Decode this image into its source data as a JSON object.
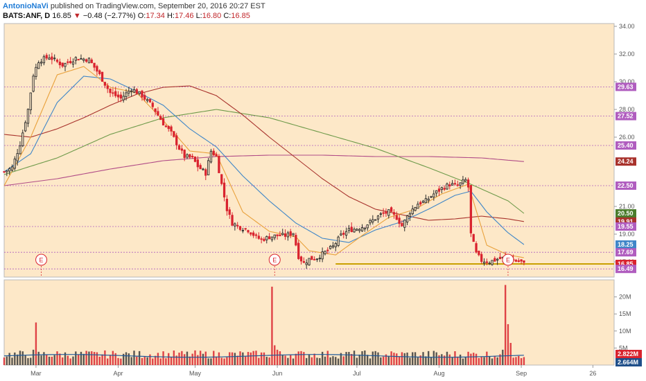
{
  "header": {
    "author": "AntonioNaVi",
    "published": "published on TradingView.com, September 20, 2016 20:27 EST",
    "symbol": "BATS:ANF, D",
    "last": "16.85",
    "change_arrow": "▼",
    "change": "−0.48 (−2.77%)",
    "o_label": "O:",
    "o": "17.34",
    "h_label": "H:",
    "h": "17.46",
    "l_label": "L:",
    "l": "16.80",
    "c_label": "C:",
    "c": "16.85"
  },
  "colors": {
    "background": "#fde8c8",
    "up": "#2b2b2b",
    "down": "#d9232e",
    "sma_fast": "#e9a13b",
    "sma_mid": "#3f86c8",
    "sma_slow": "#a8322c",
    "sma_green": "#6e9a4a",
    "sma_purple": "#b14c87",
    "support": "#c9a000",
    "level": "#b05dbf"
  },
  "chart_data": {
    "type": "candlestick",
    "title": "",
    "ylim": [
      15.9,
      34.2
    ],
    "y_ticks": [
      "34.00",
      "32.00",
      "30.00",
      "28.00",
      "26.00",
      "21.00",
      "19.00",
      "17.00"
    ],
    "x_labels": [
      "Mar",
      "Apr",
      "May",
      "Jun",
      "Jul",
      "Aug",
      "Sep",
      "26"
    ],
    "x_label_days": [
      12,
      43,
      72,
      103,
      133,
      164,
      195,
      222
    ],
    "earnings_markers_day": [
      14,
      102,
      190
    ],
    "earnings_label": "E",
    "support_level": 16.85,
    "support_from_day": 125,
    "price_labels": [
      {
        "value": "29.63",
        "y": 29.63,
        "color": "#b05dbf",
        "dashed": true
      },
      {
        "value": "27.52",
        "y": 27.52,
        "color": "#b05dbf",
        "dashed": true
      },
      {
        "value": "25.40",
        "y": 25.4,
        "color": "#b05dbf",
        "dashed": true
      },
      {
        "value": "24.24",
        "y": 24.24,
        "color": "#a8322c",
        "dashed": false
      },
      {
        "value": "22.50",
        "y": 22.5,
        "color": "#b05dbf",
        "dashed": true
      },
      {
        "value": "20.50",
        "y": 20.5,
        "color": "#4b7d2d",
        "dashed": false
      },
      {
        "value": "19.91",
        "y": 19.91,
        "color": "#a8322c",
        "dashed": false
      },
      {
        "value": "19.55",
        "y": 19.55,
        "color": "#b05dbf",
        "dashed": true
      },
      {
        "value": "18.25",
        "y": 18.25,
        "color": "#3f86c8",
        "dashed": false
      },
      {
        "value": "17.69",
        "y": 17.69,
        "color": "#b05dbf",
        "dashed": true
      },
      {
        "value": "16.85",
        "y": 16.85,
        "color": "#d9232e",
        "dashed": false
      },
      {
        "value": "16.49",
        "y": 16.49,
        "color": "#b05dbf",
        "dashed": true
      }
    ],
    "price_knots": [
      [
        0,
        23.5
      ],
      [
        3,
        23.8
      ],
      [
        6,
        25.5
      ],
      [
        9,
        28.0
      ],
      [
        11,
        30.5
      ],
      [
        13,
        31.5
      ],
      [
        17,
        31.8
      ],
      [
        22,
        31.2
      ],
      [
        27,
        31.7
      ],
      [
        32,
        31.6
      ],
      [
        36,
        30.5
      ],
      [
        40,
        29.2
      ],
      [
        44,
        28.8
      ],
      [
        48,
        29.5
      ],
      [
        52,
        29.0
      ],
      [
        56,
        28.2
      ],
      [
        60,
        27.0
      ],
      [
        63,
        26.3
      ],
      [
        66,
        25.2
      ],
      [
        68,
        24.6
      ],
      [
        71,
        24.5
      ],
      [
        73,
        23.9
      ],
      [
        76,
        23.4
      ],
      [
        78,
        25.0
      ],
      [
        80,
        24.6
      ],
      [
        82,
        22.6
      ],
      [
        84,
        20.8
      ],
      [
        86,
        19.8
      ],
      [
        89,
        19.5
      ],
      [
        92,
        19.3
      ],
      [
        95,
        18.8
      ],
      [
        97,
        18.6
      ],
      [
        100,
        18.8
      ],
      [
        103,
        18.9
      ],
      [
        106,
        18.9
      ],
      [
        109,
        19.1
      ],
      [
        111,
        17.4
      ],
      [
        113,
        16.9
      ],
      [
        115,
        17.2
      ],
      [
        118,
        17.3
      ],
      [
        121,
        17.7
      ],
      [
        124,
        18.1
      ],
      [
        127,
        18.9
      ],
      [
        130,
        19.3
      ],
      [
        133,
        19.4
      ],
      [
        136,
        19.6
      ],
      [
        139,
        20.0
      ],
      [
        142,
        20.4
      ],
      [
        145,
        20.6
      ],
      [
        148,
        20.2
      ],
      [
        150,
        19.6
      ],
      [
        153,
        20.6
      ],
      [
        156,
        21.2
      ],
      [
        159,
        21.4
      ],
      [
        162,
        21.9
      ],
      [
        165,
        22.3
      ],
      [
        168,
        22.6
      ],
      [
        171,
        22.5
      ],
      [
        174,
        22.9
      ],
      [
        175,
        22.4
      ],
      [
        176,
        19.0
      ],
      [
        178,
        17.6
      ],
      [
        180,
        17.1
      ],
      [
        183,
        17.0
      ],
      [
        186,
        17.2
      ],
      [
        189,
        17.3
      ],
      [
        192,
        17.1
      ],
      [
        195,
        17.0
      ],
      [
        196,
        16.85
      ]
    ],
    "sma_fast": [
      [
        0,
        22.5
      ],
      [
        10,
        26.0
      ],
      [
        20,
        30.5
      ],
      [
        30,
        31.1
      ],
      [
        40,
        29.6
      ],
      [
        50,
        29.2
      ],
      [
        60,
        27.2
      ],
      [
        70,
        25.0
      ],
      [
        80,
        24.8
      ],
      [
        90,
        20.6
      ],
      [
        100,
        19.2
      ],
      [
        110,
        18.8
      ],
      [
        115,
        17.8
      ],
      [
        125,
        17.5
      ],
      [
        135,
        18.9
      ],
      [
        145,
        20.2
      ],
      [
        155,
        20.8
      ],
      [
        165,
        21.9
      ],
      [
        175,
        22.6
      ],
      [
        182,
        18.2
      ],
      [
        190,
        17.5
      ],
      [
        196,
        17.3
      ]
    ],
    "sma_mid": [
      [
        0,
        23.5
      ],
      [
        10,
        24.8
      ],
      [
        20,
        28.5
      ],
      [
        30,
        30.4
      ],
      [
        40,
        30.2
      ],
      [
        50,
        29.3
      ],
      [
        60,
        28.3
      ],
      [
        70,
        26.6
      ],
      [
        80,
        25.3
      ],
      [
        90,
        23.2
      ],
      [
        100,
        21.4
      ],
      [
        110,
        19.8
      ],
      [
        120,
        18.7
      ],
      [
        130,
        18.4
      ],
      [
        140,
        19.3
      ],
      [
        150,
        19.9
      ],
      [
        160,
        20.8
      ],
      [
        170,
        21.8
      ],
      [
        176,
        22.1
      ],
      [
        182,
        20.6
      ],
      [
        190,
        19.1
      ],
      [
        196,
        18.25
      ]
    ],
    "sma_slow": [
      [
        0,
        26.2
      ],
      [
        10,
        26.0
      ],
      [
        20,
        26.6
      ],
      [
        30,
        27.4
      ],
      [
        40,
        28.3
      ],
      [
        50,
        29.1
      ],
      [
        60,
        29.6
      ],
      [
        70,
        29.7
      ],
      [
        80,
        29.0
      ],
      [
        90,
        27.6
      ],
      [
        100,
        26.0
      ],
      [
        110,
        24.5
      ],
      [
        120,
        23.0
      ],
      [
        130,
        21.7
      ],
      [
        140,
        20.8
      ],
      [
        150,
        20.4
      ],
      [
        160,
        20.0
      ],
      [
        170,
        20.1
      ],
      [
        180,
        20.3
      ],
      [
        190,
        20.1
      ],
      [
        196,
        19.91
      ]
    ],
    "sma_green": [
      [
        0,
        23.3
      ],
      [
        20,
        24.5
      ],
      [
        40,
        26.2
      ],
      [
        60,
        27.4
      ],
      [
        80,
        28.0
      ],
      [
        100,
        27.4
      ],
      [
        120,
        26.3
      ],
      [
        140,
        25.2
      ],
      [
        160,
        23.8
      ],
      [
        176,
        22.6
      ],
      [
        190,
        21.4
      ],
      [
        196,
        20.5
      ]
    ],
    "sma_purple": [
      [
        0,
        22.5
      ],
      [
        20,
        23.0
      ],
      [
        40,
        23.7
      ],
      [
        60,
        24.3
      ],
      [
        80,
        24.6
      ],
      [
        100,
        24.7
      ],
      [
        120,
        24.7
      ],
      [
        140,
        24.6
      ],
      [
        160,
        24.6
      ],
      [
        180,
        24.5
      ],
      [
        196,
        24.24
      ]
    ],
    "volume_axis_ticks": [
      "20M",
      "15M",
      "10M",
      "5M"
    ],
    "volume_ylim": [
      0,
      25
    ],
    "volume_labels": [
      {
        "value": "2.822M",
        "color": "#d9232e"
      },
      {
        "value": "2.664M",
        "color": "#1f4f8a"
      }
    ],
    "volume_base_millions": 2.7,
    "volume_spikes": [
      {
        "day": 12,
        "value": 12.5,
        "dir": "down"
      },
      {
        "day": 11,
        "value": 4.5,
        "dir": "up"
      },
      {
        "day": 101,
        "value": 23.0,
        "dir": "down"
      },
      {
        "day": 102,
        "value": 5.8,
        "dir": "down"
      },
      {
        "day": 103,
        "value": 4.5,
        "dir": "down"
      },
      {
        "day": 111,
        "value": 4.0,
        "dir": "down"
      },
      {
        "day": 189,
        "value": 23.5,
        "dir": "down"
      },
      {
        "day": 190,
        "value": 12.0,
        "dir": "down"
      },
      {
        "day": 191,
        "value": 6.5,
        "dir": "down"
      },
      {
        "day": 188,
        "value": 4.5,
        "dir": "up"
      }
    ]
  }
}
